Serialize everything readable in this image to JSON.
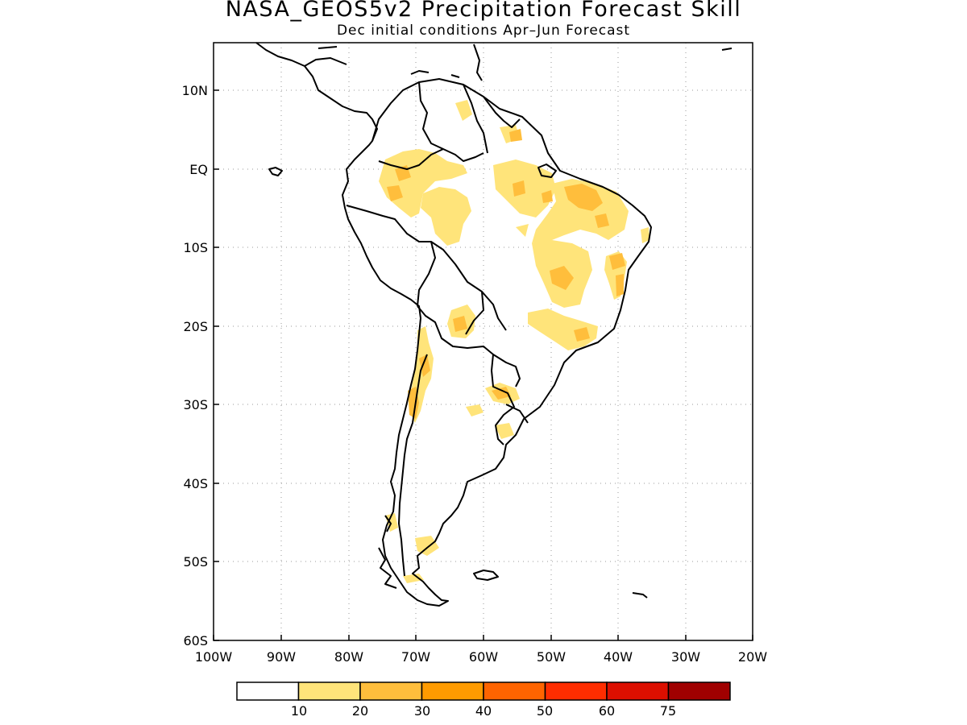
{
  "title": "NASA_GEOS5v2 Precipitation Forecast Skill",
  "subtitle": "Dec initial conditions  Apr–Jun Forecast",
  "map": {
    "region": "South America",
    "lon_range": [
      -100,
      -20
    ],
    "lat_range": [
      -60,
      15
    ],
    "lon_ticks": [
      "100W",
      "90W",
      "80W",
      "70W",
      "60W",
      "50W",
      "40W",
      "30W",
      "20W"
    ],
    "lat_ticks": [
      "10N",
      "EQ",
      "10S",
      "20S",
      "30S",
      "40S",
      "50S",
      "60S"
    ],
    "gridlines": "dotted"
  },
  "colorbar": {
    "labels": [
      "10",
      "20",
      "30",
      "40",
      "50",
      "60",
      "75"
    ],
    "colors": [
      "#ffffff",
      "#ffe47a",
      "#ffbe3c",
      "#ff9b00",
      "#ff6400",
      "#ff2d00",
      "#dc0f00",
      "#a00000"
    ]
  }
}
